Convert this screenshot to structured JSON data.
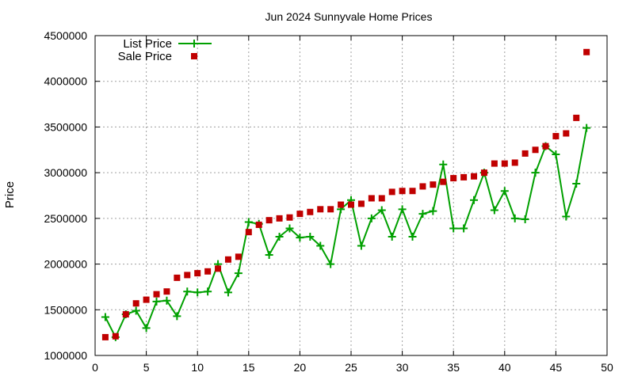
{
  "chart_data": {
    "type": "line",
    "title": "Jun 2024 Sunnyvale Home Prices",
    "xlabel": "",
    "ylabel": "Price",
    "xlim": [
      0,
      50
    ],
    "ylim": [
      1000000,
      4500000
    ],
    "x_ticks": [
      "0",
      "5",
      "10",
      "15",
      "20",
      "25",
      "30",
      "35",
      "40",
      "45",
      "50"
    ],
    "y_ticks": [
      "1000000",
      "1500000",
      "2000000",
      "2500000",
      "3000000",
      "3500000",
      "4000000",
      "4500000"
    ],
    "grid": true,
    "legend_position": "top-left",
    "series": [
      {
        "name": "List Price",
        "style": "line-with-plus-markers",
        "color": "#00a000",
        "x": [
          1,
          2,
          3,
          4,
          5,
          6,
          7,
          8,
          9,
          10,
          11,
          12,
          13,
          14,
          15,
          16,
          17,
          18,
          19,
          20,
          21,
          22,
          23,
          24,
          25,
          26,
          27,
          28,
          29,
          30,
          31,
          32,
          33,
          34,
          35,
          36,
          37,
          38,
          39,
          40,
          41,
          42,
          43,
          44,
          45,
          46,
          47,
          48
        ],
        "values": [
          1420000,
          1200000,
          1450000,
          1490000,
          1300000,
          1590000,
          1600000,
          1430000,
          1700000,
          1690000,
          1700000,
          2000000,
          1690000,
          1900000,
          2460000,
          2440000,
          2100000,
          2300000,
          2390000,
          2290000,
          2300000,
          2200000,
          2000000,
          2600000,
          2700000,
          2200000,
          2500000,
          2590000,
          2300000,
          2600000,
          2300000,
          2550000,
          2580000,
          3090000,
          2390000,
          2390000,
          2700000,
          3000000,
          2590000,
          2800000,
          2500000,
          2490000,
          3000000,
          3290000,
          3200000,
          2520000,
          2880000,
          3490000
        ]
      },
      {
        "name": "Sale Price",
        "style": "square-markers",
        "color": "#c00000",
        "x": [
          1,
          2,
          3,
          4,
          5,
          6,
          7,
          8,
          9,
          10,
          11,
          12,
          13,
          14,
          15,
          16,
          17,
          18,
          19,
          20,
          21,
          22,
          23,
          24,
          25,
          26,
          27,
          28,
          29,
          30,
          31,
          32,
          33,
          34,
          35,
          36,
          37,
          38,
          39,
          40,
          41,
          42,
          43,
          44,
          45,
          46,
          47,
          48
        ],
        "values": [
          1200000,
          1210000,
          1450000,
          1570000,
          1610000,
          1670000,
          1700000,
          1850000,
          1880000,
          1900000,
          1920000,
          1950000,
          2050000,
          2080000,
          2350000,
          2430000,
          2480000,
          2500000,
          2510000,
          2550000,
          2570000,
          2600000,
          2600000,
          2650000,
          2650000,
          2660000,
          2720000,
          2720000,
          2790000,
          2800000,
          2800000,
          2850000,
          2870000,
          2900000,
          2940000,
          2950000,
          2960000,
          3000000,
          3100000,
          3100000,
          3110000,
          3210000,
          3250000,
          3290000,
          3400000,
          3430000,
          3600000,
          4320000
        ]
      }
    ]
  }
}
